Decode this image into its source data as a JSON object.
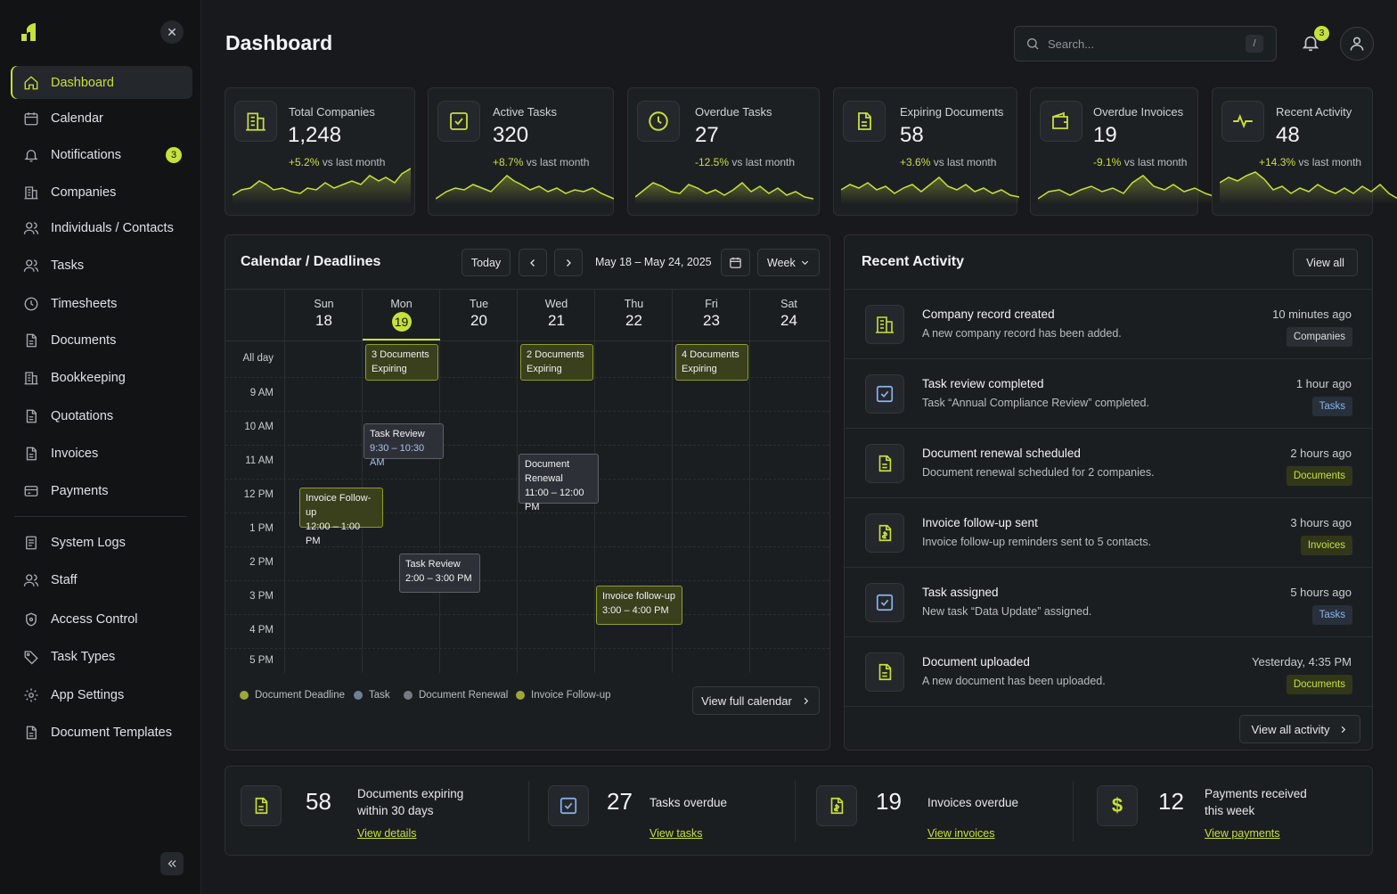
{
  "sidebar": {
    "notifications_badge": "3",
    "items": [
      {
        "label": "Dashboard",
        "icon": "home-icon"
      },
      {
        "label": "Calendar",
        "icon": "calendar-icon"
      },
      {
        "label": "Notifications",
        "icon": "bell-icon"
      },
      {
        "label": "Companies",
        "icon": "building-icon"
      },
      {
        "label": "Individuals / Contacts",
        "icon": "users-icon"
      },
      {
        "label": "Tasks",
        "icon": "users-icon"
      },
      {
        "label": "Timesheets",
        "icon": "clock-icon"
      },
      {
        "label": "Documents",
        "icon": "document-icon"
      },
      {
        "label": "Bookkeeping",
        "icon": "building-icon"
      },
      {
        "label": "Quotations",
        "icon": "document-icon"
      },
      {
        "label": "Invoices",
        "icon": "document-icon"
      },
      {
        "label": "Payments",
        "icon": "card-icon"
      },
      {
        "label": "System Logs",
        "icon": "log-icon"
      },
      {
        "label": "Staff",
        "icon": "users-icon"
      },
      {
        "label": "Access Control",
        "icon": "lock-icon"
      },
      {
        "label": "Task Types",
        "icon": "tag-icon"
      },
      {
        "label": "App Settings",
        "icon": "gear-icon"
      },
      {
        "label": "Document Templates",
        "icon": "document-icon"
      }
    ]
  },
  "header": {
    "title": "Dashboard",
    "search_placeholder": "Search...",
    "search_shortcut": "/",
    "bell_badge": "3"
  },
  "stats": [
    {
      "label": "Total Companies",
      "value": "1,248",
      "change": "+5.2%",
      "suffix": "vs last month",
      "icon": "building-icon"
    },
    {
      "label": "Active Tasks",
      "value": "320",
      "change": "+8.7%",
      "suffix": "vs last month",
      "icon": "checkbox-icon"
    },
    {
      "label": "Overdue Tasks",
      "value": "27",
      "change": "-12.5%",
      "suffix": "vs last month",
      "icon": "clock-icon"
    },
    {
      "label": "Expiring Documents",
      "value": "58",
      "change": "+3.6%",
      "suffix": "vs last month",
      "icon": "document-icon"
    },
    {
      "label": "Overdue Invoices",
      "value": "19",
      "change": "-9.1%",
      "suffix": "vs last month",
      "icon": "wallet-icon"
    },
    {
      "label": "Recent Activity",
      "value": "48",
      "change": "+14.3%",
      "suffix": "vs last month",
      "icon": "pulse-icon"
    }
  ],
  "calendar": {
    "title": "Calendar / Deadlines",
    "today_label": "Today",
    "range": "May 18 – May 24, 2025",
    "view": "Week",
    "allday_label": "All day",
    "days": [
      {
        "name": "Sun",
        "date": "18"
      },
      {
        "name": "Mon",
        "date": "19"
      },
      {
        "name": "Tue",
        "date": "20"
      },
      {
        "name": "Wed",
        "date": "21"
      },
      {
        "name": "Thu",
        "date": "22"
      },
      {
        "name": "Fri",
        "date": "23"
      },
      {
        "name": "Sat",
        "date": "24"
      }
    ],
    "times": [
      "9 AM",
      "10 AM",
      "11 AM",
      "12 PM",
      "1 PM",
      "2 PM",
      "3 PM",
      "4 PM",
      "5 PM"
    ],
    "events": {
      "docs_mon": {
        "title": "3 Documents",
        "sub": "Expiring"
      },
      "docs_wed": {
        "title": "2 Documents",
        "sub": "Expiring"
      },
      "docs_fri": {
        "title": "4 Documents",
        "sub": "Expiring"
      },
      "task_mon": {
        "title": "Task Review",
        "time": "9:30 – 10:30 AM"
      },
      "renewal_wed": {
        "title": "Document",
        "title2": "Renewal",
        "time": "11:00 – 12:00 PM"
      },
      "invoice_sun": {
        "title": "Invoice Follow-up",
        "time": "12:00 – 1:00 PM"
      },
      "task_tue": {
        "title": "Task Review",
        "time": "2:00 – 3:00 PM"
      },
      "invoice_thu": {
        "title": "Invoice follow-up",
        "time": "3:00 – 4:00 PM"
      }
    },
    "legend": [
      {
        "label": "Document Deadline",
        "color": "#9aa83a"
      },
      {
        "label": "Task",
        "color": "#6f7f97"
      },
      {
        "label": "Document Renewal",
        "color": "#767b83"
      },
      {
        "label": "Invoice Follow-up",
        "color": "#a1a534"
      }
    ],
    "view_full": "View full calendar"
  },
  "activity": {
    "title": "Recent Activity",
    "view_all": "View all",
    "view_all_activity": "View all activity",
    "items": [
      {
        "title": "Company record created",
        "desc": "A new company record has been added.",
        "time": "10 minutes ago",
        "tag": "Companies",
        "icon": "building-icon"
      },
      {
        "title": "Task review completed",
        "desc": "Task “Annual Compliance Review” completed.",
        "time": "1 hour ago",
        "tag": "Tasks",
        "icon": "checkbox-icon"
      },
      {
        "title": "Document renewal scheduled",
        "desc": "Document renewal scheduled for 2 companies.",
        "time": "2 hours ago",
        "tag": "Documents",
        "icon": "document-icon"
      },
      {
        "title": "Invoice follow-up sent",
        "desc": "Invoice follow-up reminders sent to 5 contacts.",
        "time": "3 hours ago",
        "tag": "Invoices",
        "icon": "invoice-icon"
      },
      {
        "title": "Task assigned",
        "desc": "New task “Data Update” assigned.",
        "time": "5 hours ago",
        "tag": "Tasks",
        "icon": "checkbox-icon"
      },
      {
        "title": "Document uploaded",
        "desc": "A new document has been uploaded.",
        "time": "Yesterday, 4:35 PM",
        "tag": "Documents",
        "icon": "document-icon"
      }
    ]
  },
  "summary": [
    {
      "num": "58",
      "text1": "Documents expiring",
      "text2": "within 30 days",
      "link": "View details",
      "icon": "document-icon"
    },
    {
      "num": "27",
      "text1": "Tasks overdue",
      "text2": "",
      "link": "View tasks",
      "icon": "checkbox-icon"
    },
    {
      "num": "19",
      "text1": "Invoices overdue",
      "text2": "",
      "link": "View invoices",
      "icon": "invoice-icon"
    },
    {
      "num": "12",
      "text1": "Payments received",
      "text2": "this week",
      "link": "View payments",
      "icon": "dollar-icon"
    }
  ],
  "colors": {
    "accent": "#c6e03c",
    "background": "#17191c",
    "panel": "#1b1e21",
    "task_blue": "#8db4ee"
  }
}
